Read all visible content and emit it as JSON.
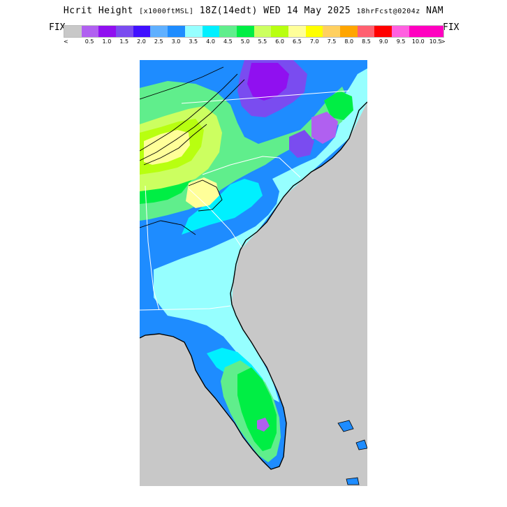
{
  "header": {
    "title_main": "Hcrit Height",
    "title_units": "[x1000ftMSL]",
    "title_time": "18Z(14edt) WED 14 May 2025",
    "title_fcst": "18hrFcst@0204z",
    "title_model": "NAM"
  },
  "legend": {
    "left_label": "FIX",
    "right_label": "FIX",
    "left_arrow": "<",
    "right_arrow": ">",
    "bins": [
      {
        "color": "#c8c8c8",
        "label": ""
      },
      {
        "color": "#b060f0",
        "label": "0.5"
      },
      {
        "color": "#9010f0",
        "label": "1.0"
      },
      {
        "color": "#7a4cf0",
        "label": "1.5"
      },
      {
        "color": "#4010ff",
        "label": "2.0"
      },
      {
        "color": "#60b0ff",
        "label": "2.5"
      },
      {
        "color": "#1e8cff",
        "label": "3.0"
      },
      {
        "color": "#96ffff",
        "label": "3.5"
      },
      {
        "color": "#00f0ff",
        "label": "4.0"
      },
      {
        "color": "#60ee8c",
        "label": "4.5"
      },
      {
        "color": "#00ee44",
        "label": "5.0"
      },
      {
        "color": "#ccff60",
        "label": "5.5"
      },
      {
        "color": "#b8ff10",
        "label": "6.0"
      },
      {
        "color": "#ffff99",
        "label": "6.5"
      },
      {
        "color": "#ffff00",
        "label": "7.0"
      },
      {
        "color": "#ffd060",
        "label": "7.5"
      },
      {
        "color": "#ffa500",
        "label": "8.0"
      },
      {
        "color": "#ff6070",
        "label": "8.5"
      },
      {
        "color": "#ff0000",
        "label": "9.0"
      },
      {
        "color": "#ff60e0",
        "label": "9.5"
      },
      {
        "color": "#ff00c0",
        "label": "10.0"
      },
      {
        "color": "#ff00c0",
        "label": "10.5"
      }
    ]
  },
  "map": {
    "colors": {
      "ocean": "#c8c8c8",
      "deep_blue": "#1e8cff",
      "light_cyan": "#96ffff",
      "cyan": "#00f0ff",
      "light_green": "#60ee8c",
      "green": "#00ee44",
      "yellow_green": "#ccff60",
      "lime": "#b8ff10",
      "pale_yellow": "#ffff99",
      "purple": "#9010f0",
      "lavender": "#b060f0",
      "violet": "#7a4cf0",
      "contour": "#000000",
      "border": "#ffffff"
    }
  }
}
